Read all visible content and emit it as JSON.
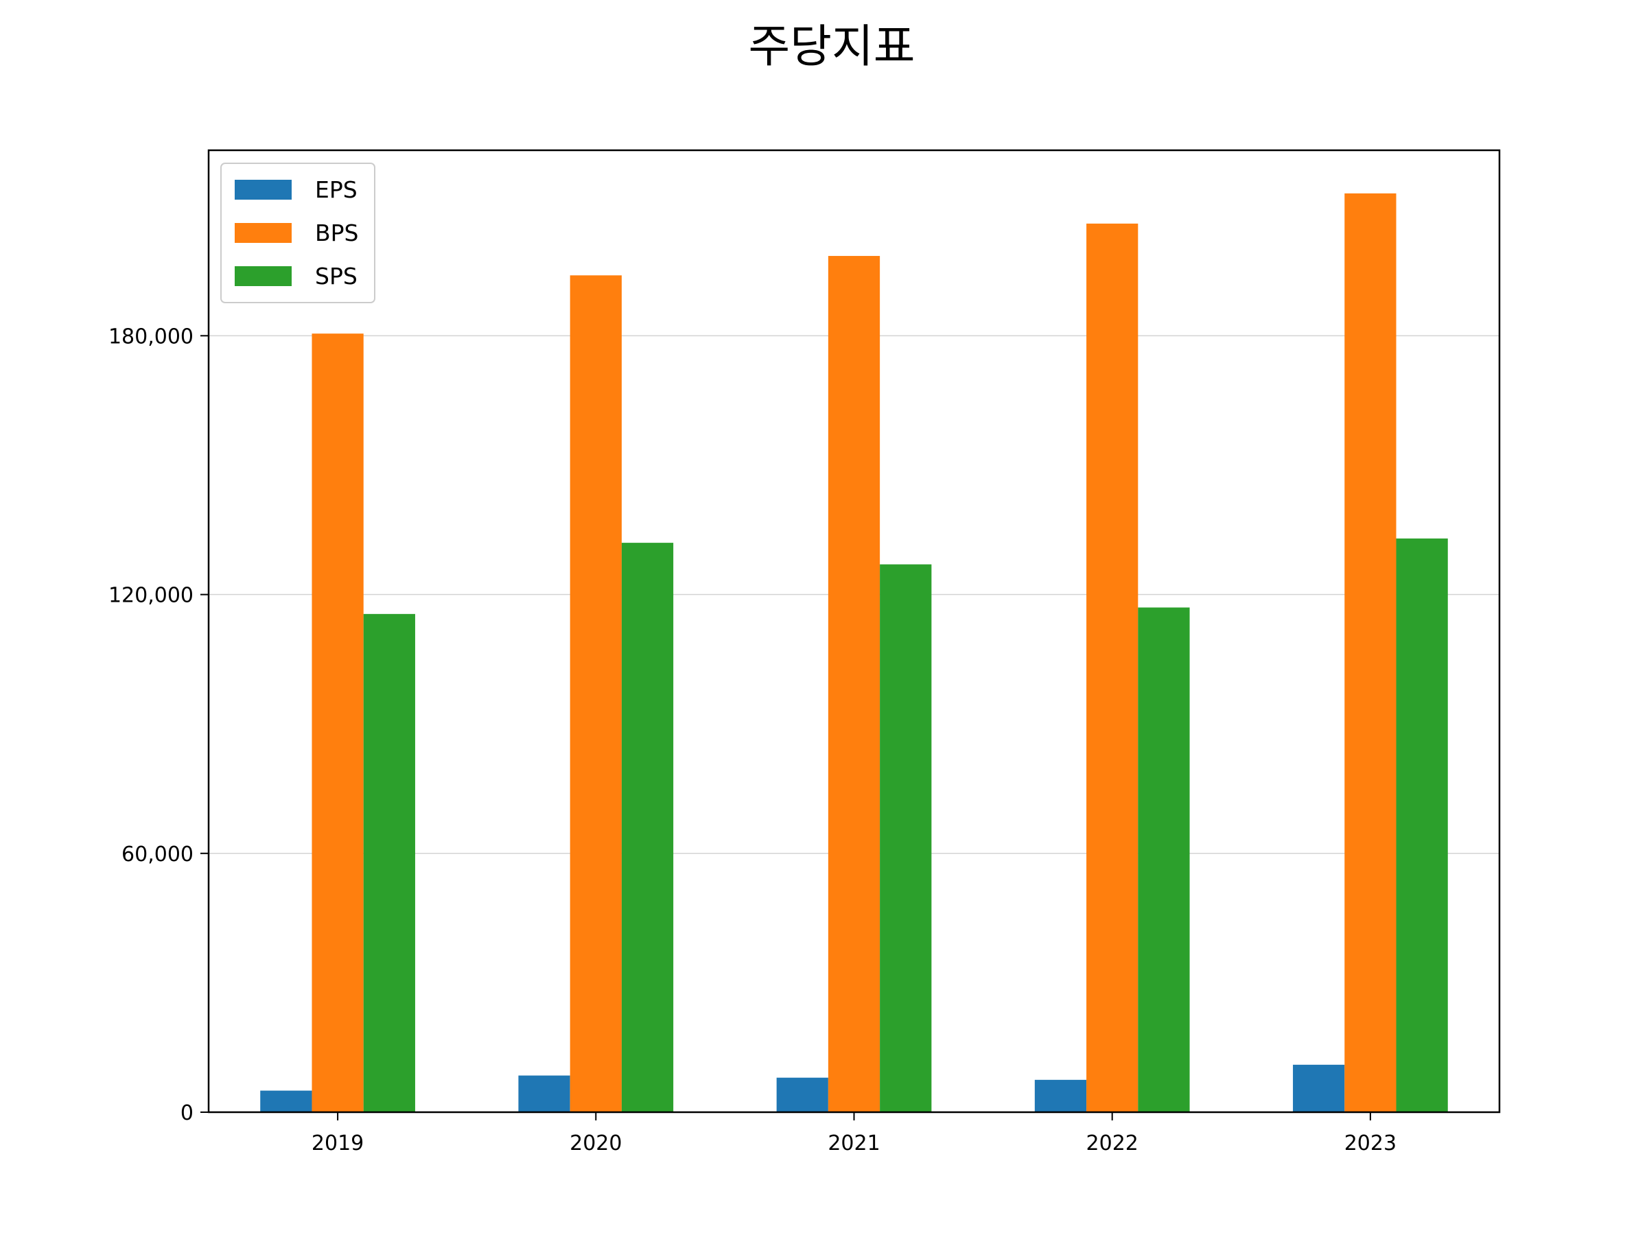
{
  "chart_data": {
    "type": "bar",
    "title": "주당지표",
    "xlabel": "",
    "ylabel": "",
    "categories": [
      "2019",
      "2020",
      "2021",
      "2022",
      "2023"
    ],
    "series": [
      {
        "name": "EPS",
        "color": "#1f77b4",
        "values": [
          5000,
          8500,
          8000,
          7500,
          11000
        ]
      },
      {
        "name": "BPS",
        "color": "#ff7f0e",
        "values": [
          180500,
          194000,
          198500,
          206000,
          213000
        ]
      },
      {
        "name": "SPS",
        "color": "#2ca02c",
        "values": [
          115500,
          132000,
          127000,
          117000,
          133000
        ]
      }
    ],
    "ylim": [
      0,
      223000
    ],
    "yticks": [
      0,
      60000,
      120000,
      180000
    ],
    "ytick_labels": [
      "0",
      "60,000",
      "120,000",
      "180,000"
    ],
    "grid": "y",
    "legend": "top-left"
  }
}
